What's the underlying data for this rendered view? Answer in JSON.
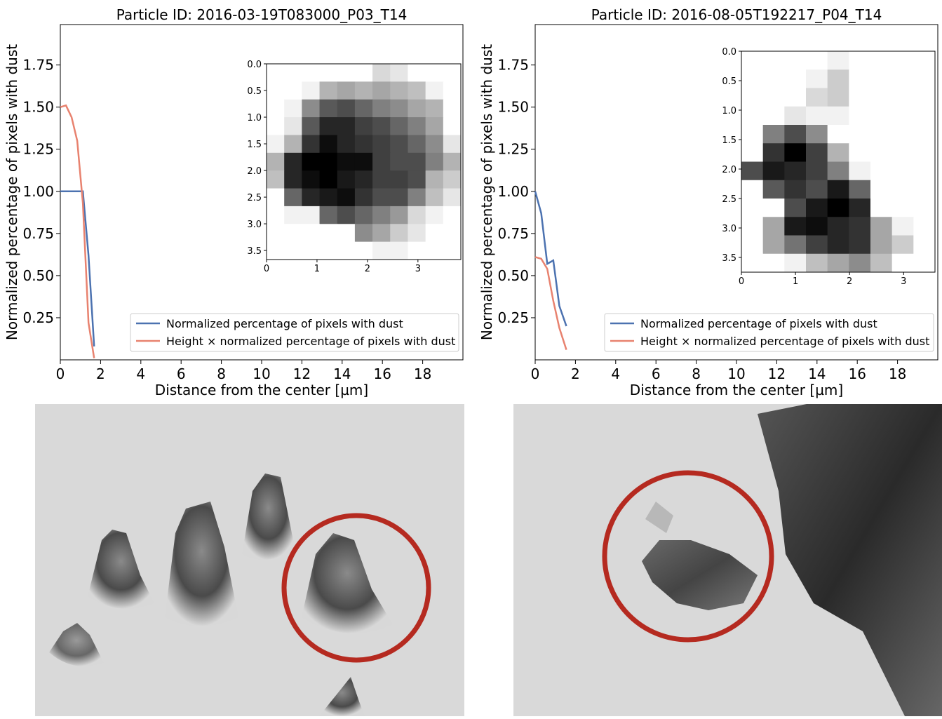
{
  "chart_data": [
    {
      "type": "line",
      "title": "Particle ID: 2016-03-19T083000_P03_T14",
      "xlabel": "Distance from the center [µm]",
      "ylabel": "Normalized percentage of pixels with dust",
      "x": [
        0,
        0.28,
        0.56,
        0.84,
        1.12,
        1.4,
        1.68
      ],
      "series": [
        {
          "name": "Normalized percentage of pixels with dust",
          "color": "#4c72b0",
          "values": [
            1.0,
            1.0,
            1.0,
            1.0,
            1.0,
            0.62,
            0.08
          ]
        },
        {
          "name": "Height × normalized percentage of pixels with dust",
          "color": "#e8826f",
          "values": [
            1.5,
            1.51,
            1.44,
            1.3,
            0.93,
            0.22,
            0.01
          ]
        }
      ],
      "xlim": [
        0,
        20
      ],
      "ylim": [
        0,
        1.99
      ],
      "xticks": [
        0,
        2,
        4,
        6,
        8,
        10,
        12,
        14,
        16,
        18
      ],
      "yticks": [
        0.25,
        {
          "value": 0.5,
          "label": "0.50"
        },
        0.75,
        {
          "value": 1.0,
          "label": "1.00"
        },
        1.25,
        {
          "value": 1.5,
          "label": "1.50"
        },
        1.75
      ],
      "legend": "lower right",
      "inset": {
        "type": "heatmap",
        "cmap": "Greys",
        "xlim": [
          0,
          3.85
        ],
        "ylim": [
          3.67,
          0
        ],
        "xticks": [
          0,
          1,
          2,
          3
        ],
        "yticks": [
          {
            "value": 0,
            "label": "0.0"
          },
          0.5,
          {
            "value": 1,
            "label": "1.0"
          },
          1.5,
          {
            "value": 2,
            "label": "2.0"
          },
          2.5,
          {
            "value": 3,
            "label": "3.0"
          },
          3.5
        ],
        "values": [
          [
            0,
            0,
            0,
            0,
            0,
            0,
            0.15,
            0.1,
            0,
            0,
            0
          ],
          [
            0,
            0,
            0.05,
            0.3,
            0.35,
            0.3,
            0.35,
            0.3,
            0.25,
            0.05,
            0
          ],
          [
            0,
            0.05,
            0.45,
            0.65,
            0.7,
            0.6,
            0.5,
            0.45,
            0.35,
            0.3,
            0
          ],
          [
            0,
            0.1,
            0.65,
            0.85,
            0.85,
            0.75,
            0.7,
            0.6,
            0.5,
            0.35,
            0
          ],
          [
            0.05,
            0.3,
            0.8,
            0.95,
            0.85,
            0.8,
            0.75,
            0.7,
            0.6,
            0.45,
            0.1
          ],
          [
            0.3,
            0.85,
            1.0,
            1.0,
            0.95,
            0.95,
            0.75,
            0.7,
            0.7,
            0.5,
            0.3
          ],
          [
            0.25,
            0.85,
            0.95,
            1.0,
            0.9,
            0.85,
            0.75,
            0.75,
            0.7,
            0.3,
            0.2
          ],
          [
            0,
            0.6,
            0.85,
            0.9,
            0.95,
            0.8,
            0.7,
            0.7,
            0.5,
            0.25,
            0.1
          ],
          [
            0,
            0.05,
            0.05,
            0.6,
            0.7,
            0.6,
            0.5,
            0.4,
            0.15,
            0.05,
            0
          ],
          [
            0,
            0,
            0,
            0,
            0,
            0.45,
            0.35,
            0.2,
            0.1,
            0,
            0
          ],
          [
            0,
            0,
            0,
            0,
            0,
            0,
            0.05,
            0.05,
            0,
            0,
            0
          ]
        ]
      }
    },
    {
      "type": "line",
      "title": "Particle ID: 2016-08-05T192217_P04_T14",
      "xlabel": "Distance from the center [µm]",
      "ylabel": "Normalized percentage of pixels with dust",
      "x": [
        0,
        0.3,
        0.6,
        0.9,
        1.2,
        1.55
      ],
      "series": [
        {
          "name": "Normalized percentage of pixels with dust",
          "color": "#4c72b0",
          "values": [
            1.0,
            0.87,
            0.57,
            0.59,
            0.32,
            0.2
          ]
        },
        {
          "name": "Height × normalized percentage of pixels with dust",
          "color": "#e8826f",
          "values": [
            0.61,
            0.6,
            0.54,
            0.35,
            0.19,
            0.06
          ]
        }
      ],
      "xlim": [
        0,
        20
      ],
      "ylim": [
        0,
        1.99
      ],
      "xticks": [
        0,
        2,
        4,
        6,
        8,
        10,
        12,
        14,
        16,
        18
      ],
      "yticks": [
        0.25,
        {
          "value": 0.5,
          "label": "0.50"
        },
        0.75,
        {
          "value": 1.0,
          "label": "1.00"
        },
        1.25,
        {
          "value": 1.5,
          "label": "1.50"
        },
        1.75
      ],
      "legend": "lower right",
      "inset": {
        "type": "heatmap",
        "cmap": "Greys",
        "xlim": [
          0,
          3.58
        ],
        "ylim": [
          3.75,
          0
        ],
        "xticks": [
          0,
          1,
          2,
          3
        ],
        "yticks": [
          {
            "value": 0,
            "label": "0.0"
          },
          0.5,
          {
            "value": 1,
            "label": "1.0"
          },
          1.5,
          {
            "value": 2,
            "label": "2.0"
          },
          2.5,
          {
            "value": 3,
            "label": "3.0"
          },
          3.5
        ],
        "values": [
          [
            0,
            0,
            0,
            0,
            0.05,
            0,
            0,
            0,
            0
          ],
          [
            0,
            0,
            0,
            0.05,
            0.2,
            0,
            0,
            0,
            0
          ],
          [
            0,
            0,
            0,
            0.15,
            0.2,
            0,
            0,
            0,
            0
          ],
          [
            0,
            0,
            0.1,
            0.05,
            0.05,
            0,
            0,
            0,
            0
          ],
          [
            0,
            0.5,
            0.7,
            0.45,
            0,
            0,
            0,
            0,
            0
          ],
          [
            0,
            0.8,
            1.0,
            0.75,
            0.3,
            0,
            0,
            0,
            0
          ],
          [
            0.7,
            0.9,
            0.85,
            0.75,
            0.5,
            0.05,
            0,
            0,
            0
          ],
          [
            0,
            0.65,
            0.8,
            0.7,
            0.9,
            0.6,
            0,
            0,
            0
          ],
          [
            0,
            0,
            0.7,
            0.9,
            1.0,
            0.85,
            0,
            0,
            0
          ],
          [
            0,
            0.35,
            0.9,
            0.95,
            0.85,
            0.8,
            0.35,
            0.05,
            0
          ],
          [
            0,
            0.35,
            0.55,
            0.75,
            0.85,
            0.8,
            0.35,
            0.2,
            0
          ],
          [
            0,
            0,
            0.05,
            0.25,
            0.35,
            0.45,
            0.25,
            0,
            0
          ]
        ]
      }
    }
  ]
}
